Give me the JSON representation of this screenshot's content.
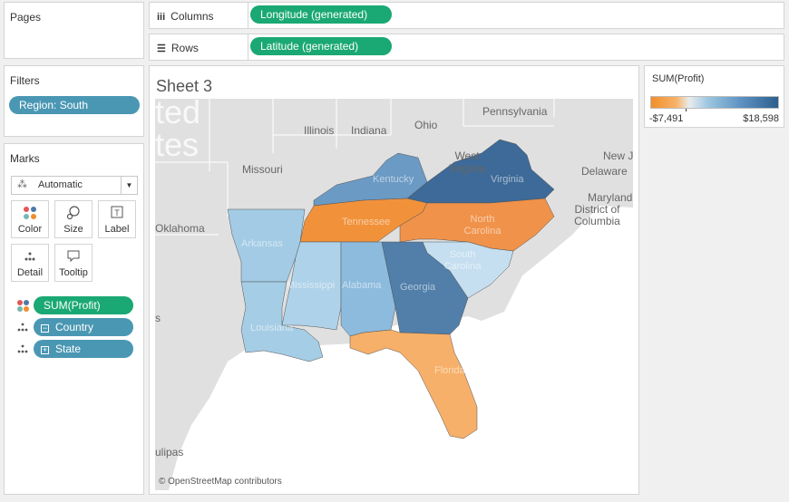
{
  "pages": {
    "title": "Pages"
  },
  "filters": {
    "title": "Filters",
    "pill": "Region: South"
  },
  "marks": {
    "title": "Marks",
    "type_select": "Automatic",
    "buttons": {
      "color": "Color",
      "size": "Size",
      "label": "Label",
      "detail": "Detail",
      "tooltip": "Tooltip"
    },
    "fields": {
      "profit": "SUM(Profit)",
      "country": "Country",
      "state": "State"
    }
  },
  "columns": {
    "label": "Columns",
    "pill": "Longitude (generated)"
  },
  "rows": {
    "label": "Rows",
    "pill": "Latitude (generated)"
  },
  "sheet": {
    "title": "Sheet 3",
    "attribution": "© OpenStreetMap contributors"
  },
  "legend": {
    "title": "SUM(Profit)",
    "min": "-$7,491",
    "max": "$18,598"
  },
  "colors": {
    "negative": "#f28e2b",
    "positive": "#2d5f8e",
    "green_pill": "#1aa874",
    "blue_pill": "#4a97b3"
  },
  "map": {
    "background_labels": [
      "ted",
      "tes",
      "Illinois",
      "Indiana",
      "Ohio",
      "Pennsylvania",
      "Missouri",
      "West Virginia",
      "New J",
      "Delaware",
      "Maryland",
      "District of Columbia",
      "Oklahoma",
      "ulipas",
      "s"
    ],
    "states": [
      {
        "name": "Kentucky",
        "profit": 11199
      },
      {
        "name": "Virginia",
        "profit": 18598
      },
      {
        "name": "Tennessee",
        "profit": -5342
      },
      {
        "name": "North Carolina",
        "profit": -7491
      },
      {
        "name": "Arkansas",
        "profit": 4009
      },
      {
        "name": "South Carolina",
        "profit": 1770
      },
      {
        "name": "Mississippi",
        "profit": 3172
      },
      {
        "name": "Alabama",
        "profit": 5787
      },
      {
        "name": "Georgia",
        "profit": 16250
      },
      {
        "name": "Louisiana",
        "profit": 2196
      },
      {
        "name": "Florida",
        "profit": -3399
      }
    ]
  }
}
